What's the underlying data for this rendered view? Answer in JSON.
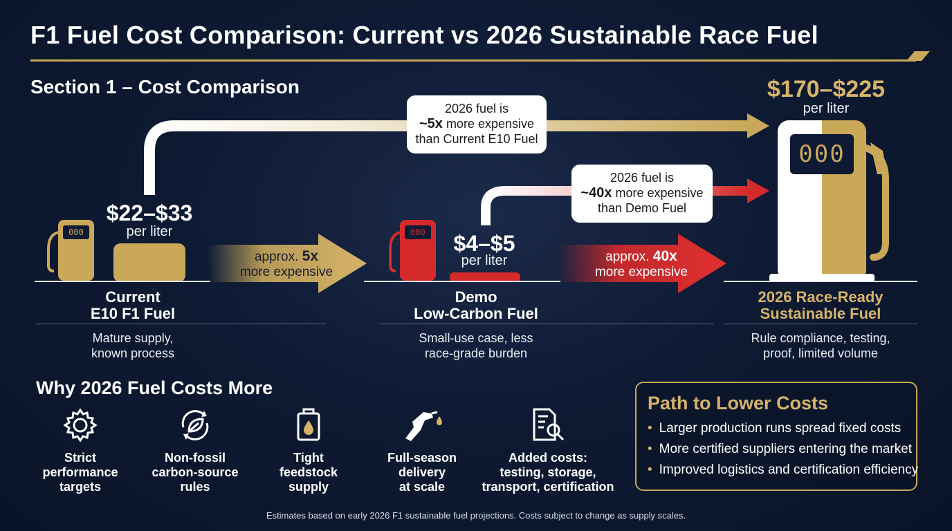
{
  "title": "F1 Fuel Cost Comparison: Current vs 2026 Sustainable Race Fuel",
  "section_title": "Section 1 – Cost Comparison",
  "colors": {
    "gold": "#c9a85a",
    "red": "#d42a2a",
    "navy": "#0e1a33",
    "white": "#ffffff"
  },
  "fuels": {
    "current": {
      "price": "$22–$33",
      "unit": "per liter",
      "name_line1": "Current",
      "name_line2": "E10 F1 Fuel",
      "desc_line1": "Mature supply,",
      "desc_line2": "known process",
      "pump_display": "000",
      "icon": "fuel-pump-icon"
    },
    "demo": {
      "price": "$4–$5",
      "unit": "per liter",
      "name_line1": "Demo",
      "name_line2": "Low-Carbon Fuel",
      "desc_line1": "Small-use case, less",
      "desc_line2": "race-grade burden",
      "pump_display": "000",
      "icon": "fuel-pump-icon"
    },
    "sustainable": {
      "price": "$170–$225",
      "unit": "per liter",
      "name_line1": "2026 Race-Ready",
      "name_line2": "Sustainable Fuel",
      "desc_line1": "Rule compliance, testing,",
      "desc_line2": "proof, limited volume",
      "pump_display": "000",
      "icon": "fuel-pump-icon"
    }
  },
  "arrows": {
    "gold_arrow": {
      "prefix": "approx.",
      "multiplier": "5x",
      "suffix": "more expensive"
    },
    "red_arrow": {
      "prefix": "approx.",
      "multiplier": "40x",
      "suffix": "more expensive"
    }
  },
  "callouts": {
    "top": {
      "line1": "2026 fuel is",
      "multiplier": "~5x",
      "line2_rest": "more expensive",
      "line3": "than Current E10 Fuel"
    },
    "middle": {
      "line1": "2026 fuel is",
      "multiplier": "~40x",
      "line2_rest": "more expensive",
      "line3": "than Demo Fuel"
    }
  },
  "why": {
    "title": "Why 2026 Fuel Costs More",
    "items": [
      {
        "icon": "gear-icon",
        "line1": "Strict",
        "line2": "performance",
        "line3": "targets"
      },
      {
        "icon": "leaf-cycle-icon",
        "line1": "Non-fossil",
        "line2": "carbon-source",
        "line3": "rules"
      },
      {
        "icon": "fuel-canister-icon",
        "line1": "Tight",
        "line2": "feedstock",
        "line3": "supply"
      },
      {
        "icon": "fuel-nozzle-icon",
        "line1": "Full-season",
        "line2": "delivery",
        "line3": "at scale"
      },
      {
        "icon": "document-search-icon",
        "line1": "Added costs:",
        "line2": "testing, storage,",
        "line3": "transport, certification"
      }
    ]
  },
  "path": {
    "title": "Path to Lower Costs",
    "items": [
      "Larger production runs spread fixed costs",
      "More certified suppliers entering the market",
      "Improved logistics and certification efficiency"
    ]
  },
  "footnote": "Estimates based on early 2026 F1 sustainable fuel projections. Costs subject to change as supply scales."
}
